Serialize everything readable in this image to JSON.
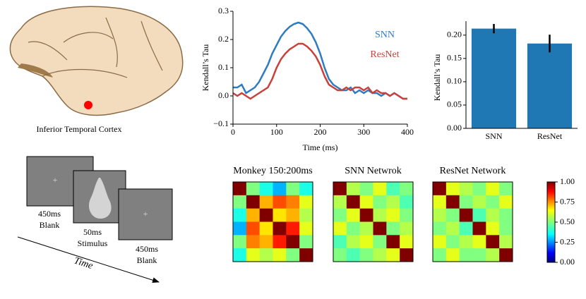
{
  "illustration": {
    "caption": "Inferior Temporal Cortex"
  },
  "stimuli": [
    {
      "duration": "450ms",
      "label": "Blank"
    },
    {
      "duration": "50ms",
      "label": "Stimulus"
    },
    {
      "duration": "450ms",
      "label": "Blank"
    }
  ],
  "time_label": "Time",
  "chart_data": [
    {
      "type": "line",
      "xlabel": "Time (ms)",
      "ylabel": "Kendall’s Tau",
      "x": [
        0,
        10,
        20,
        30,
        40,
        50,
        60,
        70,
        80,
        90,
        100,
        110,
        120,
        130,
        140,
        150,
        160,
        170,
        180,
        190,
        200,
        210,
        220,
        230,
        240,
        250,
        260,
        270,
        280,
        290,
        300,
        310,
        320,
        330,
        340,
        350,
        360,
        370,
        380,
        390,
        400
      ],
      "series": [
        {
          "name": "SNN",
          "color": "#2e7bbf",
          "values": [
            0.03,
            0.03,
            0.04,
            0.01,
            0.02,
            0.03,
            0.05,
            0.08,
            0.11,
            0.15,
            0.18,
            0.21,
            0.23,
            0.245,
            0.255,
            0.26,
            0.255,
            0.24,
            0.22,
            0.19,
            0.15,
            0.1,
            0.06,
            0.04,
            0.03,
            0.02,
            0.02,
            0.03,
            0.01,
            0.02,
            0.01,
            0.02,
            0.01,
            0.01,
            0.0,
            0.01,
            0.0,
            0.01,
            0.0,
            -0.01,
            -0.01
          ]
        },
        {
          "name": "ResNet",
          "color": "#c9413b",
          "values": [
            0.01,
            0.0,
            0.01,
            0.0,
            -0.01,
            0.0,
            0.01,
            0.02,
            0.03,
            0.06,
            0.1,
            0.13,
            0.15,
            0.165,
            0.175,
            0.185,
            0.185,
            0.175,
            0.16,
            0.14,
            0.11,
            0.07,
            0.04,
            0.03,
            0.02,
            0.02,
            0.03,
            0.02,
            0.03,
            0.03,
            0.02,
            0.03,
            0.01,
            0.02,
            0.01,
            0.01,
            0.0,
            0.01,
            0.0,
            -0.01,
            -0.01
          ]
        }
      ],
      "xlim": [
        0,
        400
      ],
      "xticks": [
        0,
        100,
        200,
        300,
        400
      ],
      "ylim": [
        -0.1,
        0.3
      ],
      "yticks": [
        {
          "value": -0.1,
          "label": "−0.1"
        },
        {
          "value": 0,
          "label": "0.0"
        },
        0.1,
        0.2,
        0.3
      ]
    },
    {
      "type": "bar",
      "ylabel": "Kendall’s Tau",
      "categories": [
        "SNN",
        "ResNet"
      ],
      "values": [
        0.214,
        0.182
      ],
      "errors": [
        0.01,
        0.019
      ],
      "color": "#1f77b4",
      "ylim": [
        0,
        0.23
      ],
      "yticks": [
        {
          "value": 0,
          "label": "0.00"
        },
        0.05,
        {
          "value": 0.1,
          "label": "0.10"
        },
        0.15,
        {
          "value": 0.2,
          "label": "0.20"
        }
      ]
    },
    {
      "type": "heatmap",
      "title": "Monkey 150:200ms",
      "values": [
        [
          1,
          0.5,
          0.4,
          0.3,
          0.5,
          0.4
        ],
        [
          0.5,
          1,
          0.7,
          0.8,
          0.75,
          0.6
        ],
        [
          0.4,
          0.7,
          1,
          0.65,
          0.7,
          0.55
        ],
        [
          0.3,
          0.8,
          0.65,
          1,
          0.85,
          0.6
        ],
        [
          0.5,
          0.75,
          0.7,
          0.85,
          1,
          0.5
        ],
        [
          0.4,
          0.6,
          0.55,
          0.6,
          0.5,
          1
        ]
      ]
    },
    {
      "type": "heatmap",
      "title": "SNN Netwrok",
      "values": [
        [
          1,
          0.55,
          0.5,
          0.6,
          0.45,
          0.5
        ],
        [
          0.55,
          1,
          0.6,
          0.5,
          0.55,
          0.45
        ],
        [
          0.5,
          0.6,
          1,
          0.55,
          0.6,
          0.5
        ],
        [
          0.6,
          0.5,
          0.55,
          1,
          0.5,
          0.55
        ],
        [
          0.45,
          0.55,
          0.6,
          0.5,
          1,
          0.6
        ],
        [
          0.5,
          0.45,
          0.5,
          0.55,
          0.6,
          1
        ]
      ]
    },
    {
      "type": "heatmap",
      "title": "ResNet Network",
      "values": [
        [
          1,
          0.6,
          0.55,
          0.5,
          0.6,
          0.5
        ],
        [
          0.6,
          1,
          0.5,
          0.55,
          0.5,
          0.6
        ],
        [
          0.55,
          0.5,
          1,
          0.45,
          0.55,
          0.5
        ],
        [
          0.5,
          0.55,
          0.45,
          1,
          0.6,
          0.5
        ],
        [
          0.6,
          0.5,
          0.55,
          0.6,
          1,
          0.55
        ],
        [
          0.5,
          0.6,
          0.5,
          0.5,
          0.55,
          1
        ]
      ]
    },
    {
      "type": "colorbar",
      "lim": [
        0,
        1
      ],
      "ticks": [
        {
          "value": 0,
          "label": "0.00"
        },
        0.25,
        {
          "value": 0.5,
          "label": "0.50"
        },
        0.75,
        {
          "value": 1,
          "label": "1.00"
        }
      ]
    }
  ]
}
